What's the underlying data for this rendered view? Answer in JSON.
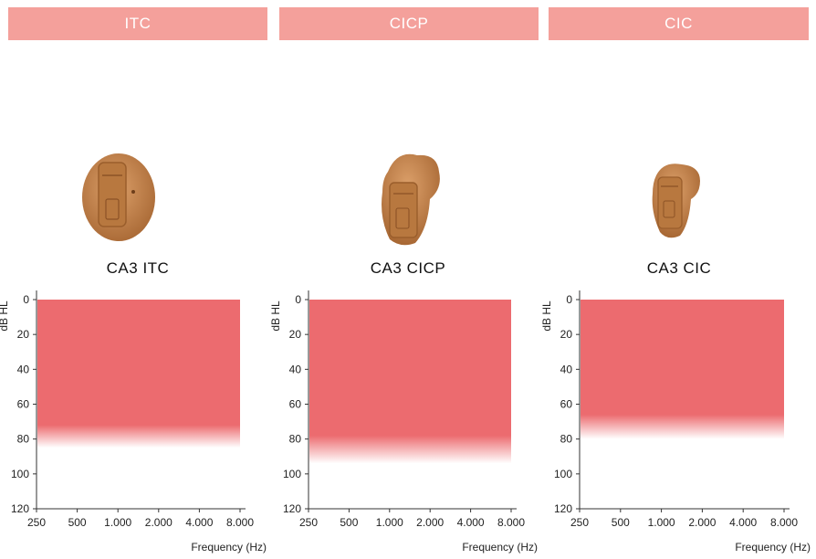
{
  "panels": [
    {
      "tab_label": "ITC",
      "model_name": "CA3 ITC",
      "device": {
        "image": "itc-hearing-aid-image",
        "shell_color": "#c98a52",
        "shade_color": "#a86834"
      },
      "chart_data": {
        "type": "area",
        "xlabel": "Frequency (Hz)",
        "ylabel": "dB HL",
        "x_ticks": [
          "250",
          "500",
          "1.000",
          "2.000",
          "4.000",
          "8.000"
        ],
        "y_ticks": [
          0,
          20,
          40,
          60,
          80,
          100,
          120
        ],
        "ylim": [
          0,
          120
        ],
        "y_reversed": true,
        "fill_color": "#ec6b6f",
        "fitting_range": {
          "x_from": "250",
          "x_to": "8.000",
          "db_from": 0,
          "db_solid_to": 72,
          "db_fade_to": 85
        }
      }
    },
    {
      "tab_label": "CICP",
      "model_name": "CA3 CICP",
      "device": {
        "image": "cicp-hearing-aid-image",
        "shell_color": "#c98a52",
        "shade_color": "#a86834"
      },
      "chart_data": {
        "type": "area",
        "xlabel": "Frequency (Hz)",
        "ylabel": "dB HL",
        "x_ticks": [
          "250",
          "500",
          "1.000",
          "2.000",
          "4.000",
          "8.000"
        ],
        "y_ticks": [
          0,
          20,
          40,
          60,
          80,
          100,
          120
        ],
        "ylim": [
          0,
          120
        ],
        "y_reversed": true,
        "fill_color": "#ec6b6f",
        "fitting_range": {
          "x_from": "250",
          "x_to": "8.000",
          "db_from": 0,
          "db_solid_to": 78,
          "db_fade_to": 94
        }
      }
    },
    {
      "tab_label": "CIC",
      "model_name": "CA3 CIC",
      "device": {
        "image": "cic-hearing-aid-image",
        "shell_color": "#c98a52",
        "shade_color": "#a86834"
      },
      "chart_data": {
        "type": "area",
        "xlabel": "Frequency (Hz)",
        "ylabel": "dB HL",
        "x_ticks": [
          "250",
          "500",
          "1.000",
          "2.000",
          "4.000",
          "8.000"
        ],
        "y_ticks": [
          0,
          20,
          40,
          60,
          80,
          100,
          120
        ],
        "ylim": [
          0,
          120
        ],
        "y_reversed": true,
        "fill_color": "#ec6b6f",
        "fitting_range": {
          "x_from": "250",
          "x_to": "8.000",
          "db_from": 0,
          "db_solid_to": 66,
          "db_fade_to": 80
        }
      }
    }
  ]
}
